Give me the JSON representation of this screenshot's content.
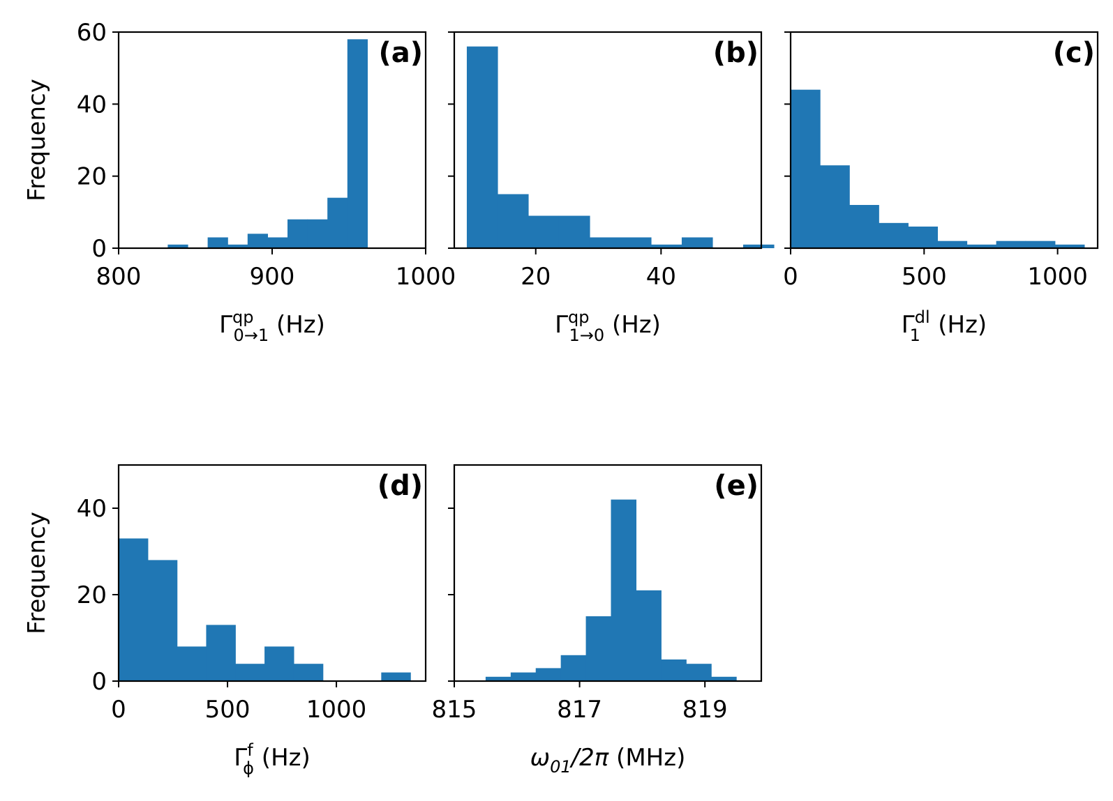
{
  "chart_data": [
    {
      "id": "a",
      "type": "bar",
      "panel_label": "(a)",
      "ylabel": "Frequency",
      "xlabel": {
        "base": "Γ",
        "sup": "qp",
        "sub": "0→1",
        "unit": "(Hz)"
      },
      "xlim": [
        800,
        1000
      ],
      "ylim": [
        0,
        60
      ],
      "xticks": [
        800,
        900,
        1000
      ],
      "yticks": [
        0,
        20,
        40,
        60
      ],
      "show_ytick_labels": true,
      "bin_edges": [
        832,
        845,
        858,
        871,
        884,
        897,
        910,
        923,
        936,
        949,
        962
      ],
      "values": [
        1,
        0,
        3,
        1,
        4,
        3,
        8,
        8,
        14,
        58
      ],
      "color": "#2077b4"
    },
    {
      "id": "b",
      "type": "bar",
      "panel_label": "(b)",
      "ylabel": "",
      "xlabel": {
        "base": "Γ",
        "sup": "qp",
        "sub": "1→0",
        "unit": "(Hz)"
      },
      "xlim": [
        7,
        56
      ],
      "ylim": [
        0,
        60
      ],
      "xticks": [
        20,
        40
      ],
      "yticks": [
        0,
        20,
        40,
        60
      ],
      "show_ytick_labels": false,
      "bin_edges": [
        9,
        13.9,
        18.8,
        23.7,
        28.6,
        33.5,
        38.4,
        43.3,
        48.2,
        53.1,
        58
      ],
      "values": [
        56,
        15,
        9,
        9,
        3,
        3,
        1,
        3,
        0,
        1
      ],
      "color": "#2077b4"
    },
    {
      "id": "c",
      "type": "bar",
      "panel_label": "(c)",
      "ylabel": "",
      "xlabel": {
        "base": "Γ",
        "sup": "dl",
        "sub": "1",
        "unit": "(Hz)"
      },
      "xlim": [
        0,
        1150
      ],
      "ylim": [
        0,
        60
      ],
      "xticks": [
        0,
        500,
        1000
      ],
      "yticks": [
        0,
        20,
        40,
        60
      ],
      "show_ytick_labels": false,
      "bin_edges": [
        0,
        110,
        220,
        330,
        440,
        550,
        660,
        770,
        880,
        990,
        1100
      ],
      "values": [
        44,
        23,
        12,
        7,
        6,
        2,
        1,
        2,
        2,
        1
      ],
      "color": "#2077b4"
    },
    {
      "id": "d",
      "type": "bar",
      "panel_label": "(d)",
      "ylabel": "Frequency",
      "xlabel": {
        "base": "Γ",
        "sup": "f",
        "sub": "ϕ",
        "unit": "(Hz)"
      },
      "xlim": [
        0,
        1410
      ],
      "ylim": [
        0,
        50
      ],
      "xticks": [
        0,
        500,
        1000
      ],
      "yticks": [
        0,
        20,
        40
      ],
      "show_ytick_labels": true,
      "bin_edges": [
        0,
        134,
        268,
        402,
        536,
        670,
        804,
        938,
        1072,
        1206,
        1340
      ],
      "values": [
        33,
        28,
        8,
        13,
        4,
        8,
        4,
        0,
        0,
        2
      ],
      "color": "#2077b4"
    },
    {
      "id": "e",
      "type": "bar",
      "panel_label": "(e)",
      "ylabel": "",
      "xlabel": {
        "base": "ω",
        "sub": "01",
        "tail": "/2π",
        "unit": "(MHz)"
      },
      "xlim": [
        815,
        819.9
      ],
      "ylim": [
        0,
        50
      ],
      "xticks": [
        815,
        817,
        819
      ],
      "yticks": [
        0,
        20,
        40
      ],
      "show_ytick_labels": false,
      "bin_edges": [
        815.5,
        815.9,
        816.3,
        816.7,
        817.1,
        817.5,
        817.9,
        818.3,
        818.7,
        819.1,
        819.5
      ],
      "values": [
        1,
        2,
        3,
        6,
        15,
        42,
        21,
        5,
        4,
        1
      ],
      "color": "#2077b4"
    }
  ]
}
